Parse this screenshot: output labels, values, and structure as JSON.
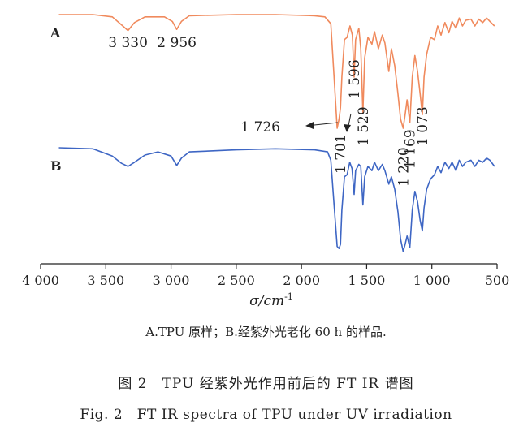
{
  "chart_data": {
    "type": "line",
    "xlabel": "σ/cm",
    "xlabel_sup": "-1",
    "x_reversed": true,
    "xlim": [
      4000,
      500
    ],
    "xticks": [
      {
        "v": 4000,
        "label": "4 000"
      },
      {
        "v": 3500,
        "label": "3 500"
      },
      {
        "v": 3000,
        "label": "3 000"
      },
      {
        "v": 2500,
        "label": "2 500"
      },
      {
        "v": 2000,
        "label": "2 000"
      },
      {
        "v": 1500,
        "label": "1 500"
      },
      {
        "v": 1000,
        "label": "1 000"
      },
      {
        "v": 500,
        "label": "500"
      }
    ],
    "yaxis": "none",
    "series": [
      {
        "name": "A",
        "color": "#f08a5d",
        "unit": "relative transmittance (0 = baseline, 1 = deepest band)",
        "points": [
          [
            3860,
            0.0
          ],
          [
            3600,
            0.0
          ],
          [
            3450,
            0.02
          ],
          [
            3380,
            0.09
          ],
          [
            3330,
            0.14
          ],
          [
            3280,
            0.07
          ],
          [
            3200,
            0.02
          ],
          [
            3050,
            0.02
          ],
          [
            2990,
            0.06
          ],
          [
            2956,
            0.13
          ],
          [
            2920,
            0.06
          ],
          [
            2860,
            0.01
          ],
          [
            2500,
            0.0
          ],
          [
            2200,
            0.0
          ],
          [
            1900,
            0.01
          ],
          [
            1820,
            0.02
          ],
          [
            1775,
            0.08
          ],
          [
            1750,
            0.55
          ],
          [
            1726,
            1.0
          ],
          [
            1712,
            0.92
          ],
          [
            1701,
            0.82
          ],
          [
            1690,
            0.55
          ],
          [
            1670,
            0.22
          ],
          [
            1650,
            0.2
          ],
          [
            1628,
            0.1
          ],
          [
            1610,
            0.18
          ],
          [
            1596,
            0.55
          ],
          [
            1585,
            0.22
          ],
          [
            1560,
            0.12
          ],
          [
            1545,
            0.3
          ],
          [
            1529,
            0.86
          ],
          [
            1515,
            0.38
          ],
          [
            1490,
            0.2
          ],
          [
            1460,
            0.26
          ],
          [
            1440,
            0.15
          ],
          [
            1410,
            0.3
          ],
          [
            1380,
            0.18
          ],
          [
            1360,
            0.25
          ],
          [
            1330,
            0.5
          ],
          [
            1310,
            0.3
          ],
          [
            1285,
            0.45
          ],
          [
            1260,
            0.7
          ],
          [
            1240,
            0.92
          ],
          [
            1220,
            1.0
          ],
          [
            1205,
            0.88
          ],
          [
            1190,
            0.75
          ],
          [
            1169,
            0.95
          ],
          [
            1150,
            0.55
          ],
          [
            1130,
            0.36
          ],
          [
            1110,
            0.5
          ],
          [
            1090,
            0.7
          ],
          [
            1073,
            0.88
          ],
          [
            1060,
            0.55
          ],
          [
            1040,
            0.35
          ],
          [
            1010,
            0.2
          ],
          [
            980,
            0.22
          ],
          [
            955,
            0.1
          ],
          [
            930,
            0.18
          ],
          [
            900,
            0.07
          ],
          [
            870,
            0.16
          ],
          [
            845,
            0.06
          ],
          [
            815,
            0.12
          ],
          [
            790,
            0.03
          ],
          [
            765,
            0.1
          ],
          [
            740,
            0.05
          ],
          [
            700,
            0.04
          ],
          [
            670,
            0.1
          ],
          [
            640,
            0.04
          ],
          [
            610,
            0.07
          ],
          [
            580,
            0.03
          ],
          [
            555,
            0.06
          ],
          [
            520,
            0.1
          ]
        ],
        "annotations": [
          {
            "wn": 3330,
            "text": "3 330",
            "rotate": false
          },
          {
            "wn": 2956,
            "text": "2 956",
            "rotate": false
          },
          {
            "wn": 1726,
            "text": "1 726",
            "rotate": false,
            "arrow": true
          },
          {
            "wn": 1701,
            "text": "1 701",
            "rotate": true
          },
          {
            "wn": 1596,
            "text": "1 596",
            "rotate": true
          },
          {
            "wn": 1529,
            "text": "1 529",
            "rotate": true
          },
          {
            "wn": 1220,
            "text": "1 220",
            "rotate": true
          },
          {
            "wn": 1169,
            "text": "1 169",
            "rotate": true
          },
          {
            "wn": 1073,
            "text": "1 073",
            "rotate": true
          }
        ]
      },
      {
        "name": "B",
        "color": "#3e66c4",
        "unit": "relative transmittance (0 = baseline, 1 = deepest band)",
        "points": [
          [
            3860,
            0.0
          ],
          [
            3600,
            0.01
          ],
          [
            3450,
            0.08
          ],
          [
            3380,
            0.15
          ],
          [
            3330,
            0.18
          ],
          [
            3280,
            0.14
          ],
          [
            3200,
            0.07
          ],
          [
            3100,
            0.04
          ],
          [
            3000,
            0.08
          ],
          [
            2956,
            0.17
          ],
          [
            2920,
            0.1
          ],
          [
            2860,
            0.04
          ],
          [
            2500,
            0.02
          ],
          [
            2200,
            0.01
          ],
          [
            1900,
            0.02
          ],
          [
            1800,
            0.04
          ],
          [
            1775,
            0.12
          ],
          [
            1750,
            0.55
          ],
          [
            1726,
            0.95
          ],
          [
            1712,
            0.97
          ],
          [
            1701,
            0.93
          ],
          [
            1690,
            0.6
          ],
          [
            1670,
            0.28
          ],
          [
            1650,
            0.26
          ],
          [
            1630,
            0.14
          ],
          [
            1612,
            0.2
          ],
          [
            1596,
            0.45
          ],
          [
            1585,
            0.22
          ],
          [
            1560,
            0.16
          ],
          [
            1545,
            0.18
          ],
          [
            1529,
            0.55
          ],
          [
            1515,
            0.28
          ],
          [
            1490,
            0.18
          ],
          [
            1460,
            0.22
          ],
          [
            1440,
            0.14
          ],
          [
            1410,
            0.22
          ],
          [
            1380,
            0.16
          ],
          [
            1360,
            0.22
          ],
          [
            1330,
            0.35
          ],
          [
            1310,
            0.28
          ],
          [
            1285,
            0.4
          ],
          [
            1260,
            0.62
          ],
          [
            1240,
            0.88
          ],
          [
            1220,
            1.0
          ],
          [
            1205,
            0.93
          ],
          [
            1190,
            0.85
          ],
          [
            1169,
            0.96
          ],
          [
            1150,
            0.6
          ],
          [
            1130,
            0.42
          ],
          [
            1110,
            0.52
          ],
          [
            1090,
            0.7
          ],
          [
            1073,
            0.8
          ],
          [
            1060,
            0.58
          ],
          [
            1040,
            0.4
          ],
          [
            1010,
            0.3
          ],
          [
            980,
            0.26
          ],
          [
            955,
            0.18
          ],
          [
            930,
            0.24
          ],
          [
            900,
            0.14
          ],
          [
            870,
            0.2
          ],
          [
            845,
            0.14
          ],
          [
            815,
            0.22
          ],
          [
            790,
            0.12
          ],
          [
            765,
            0.18
          ],
          [
            740,
            0.14
          ],
          [
            700,
            0.12
          ],
          [
            670,
            0.18
          ],
          [
            640,
            0.12
          ],
          [
            610,
            0.14
          ],
          [
            580,
            0.1
          ],
          [
            555,
            0.12
          ],
          [
            520,
            0.18
          ]
        ]
      }
    ]
  },
  "captions": {
    "samples": "A.TPU 原样；B.经紫外光老化 60 h 的样品.",
    "figure_cn": "图 2　TPU 经紫外光作用前后的 FT IR 谱图",
    "figure_en": "Fig. 2　FT IR spectra of TPU under UV irradiation"
  }
}
